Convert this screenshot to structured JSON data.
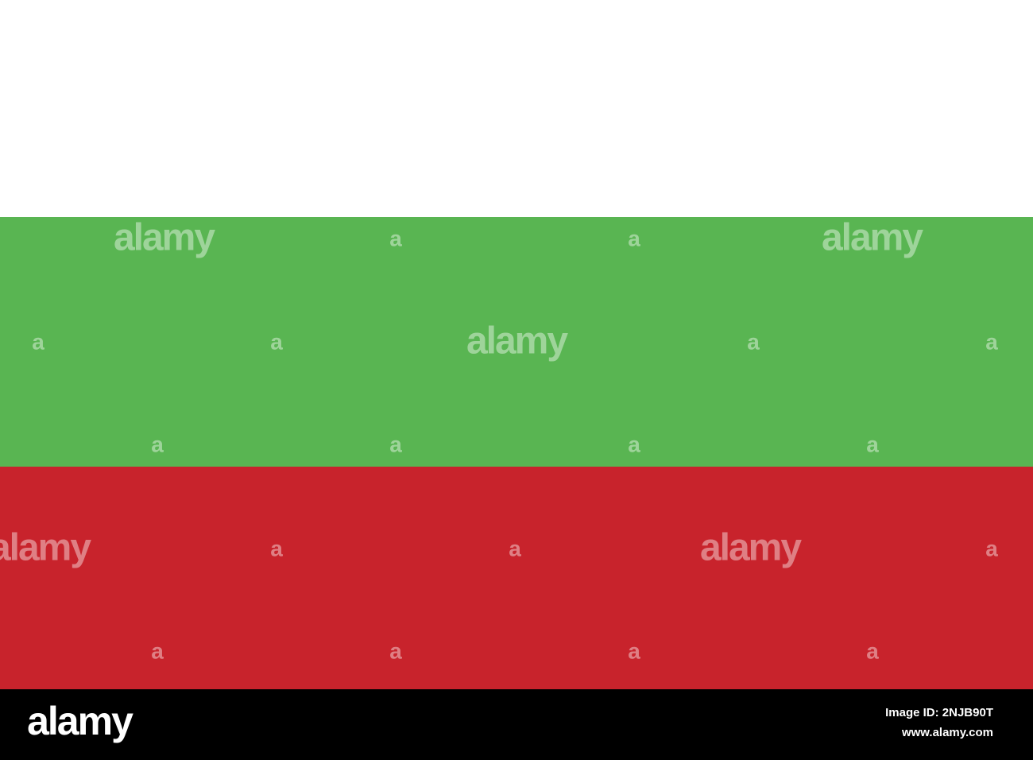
{
  "watermarks": [
    "alamy",
    "a",
    "a",
    "alamy",
    "a",
    "a",
    "alamy",
    "a",
    "a",
    "a",
    "a",
    "a",
    "a",
    "alamy",
    "a",
    "a",
    "alamy",
    "a",
    "a",
    "a",
    "a",
    "a"
  ],
  "footer": {
    "logo": "alamy",
    "image_id": "Image ID: 2NJB90T",
    "url": "www.alamy.com"
  }
}
